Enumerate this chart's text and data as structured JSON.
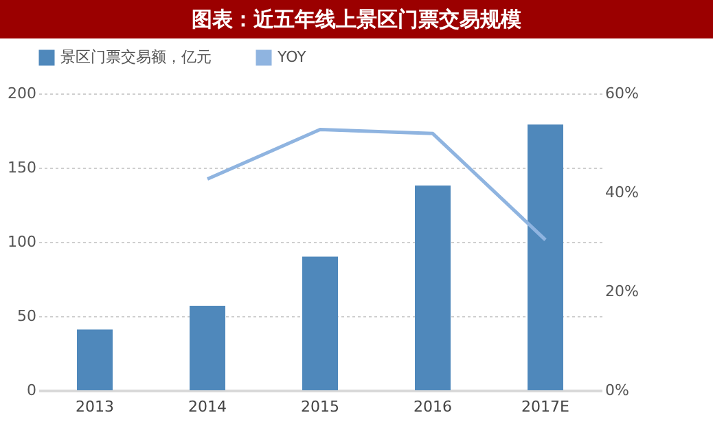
{
  "chart_data": {
    "type": "bar",
    "title": "图表：近五年线上景区门票交易规模",
    "categories": [
      "2013",
      "2014",
      "2015",
      "2016",
      "2017E"
    ],
    "series": [
      {
        "name": "景区门票交易额，亿元",
        "color": "#4f88bb",
        "values": [
          41,
          57,
          90,
          138,
          179
        ]
      },
      {
        "name": "YOY",
        "type": "line",
        "axis": "y2",
        "color": "#8fb4e0",
        "values": [
          null,
          42.7,
          52.7,
          51.9,
          30.4
        ]
      }
    ],
    "ylim": [
      0,
      200
    ],
    "yticks": [
      0,
      50,
      100,
      150,
      200
    ],
    "y2lim": [
      0,
      60
    ],
    "y2ticks": [
      {
        "value": 0,
        "label": "0%"
      },
      {
        "value": 20,
        "label": "20%"
      },
      {
        "value": 40,
        "label": "40%"
      },
      {
        "value": 60,
        "label": "60%"
      }
    ],
    "grid": "y",
    "legend": "top",
    "marker": "none"
  }
}
